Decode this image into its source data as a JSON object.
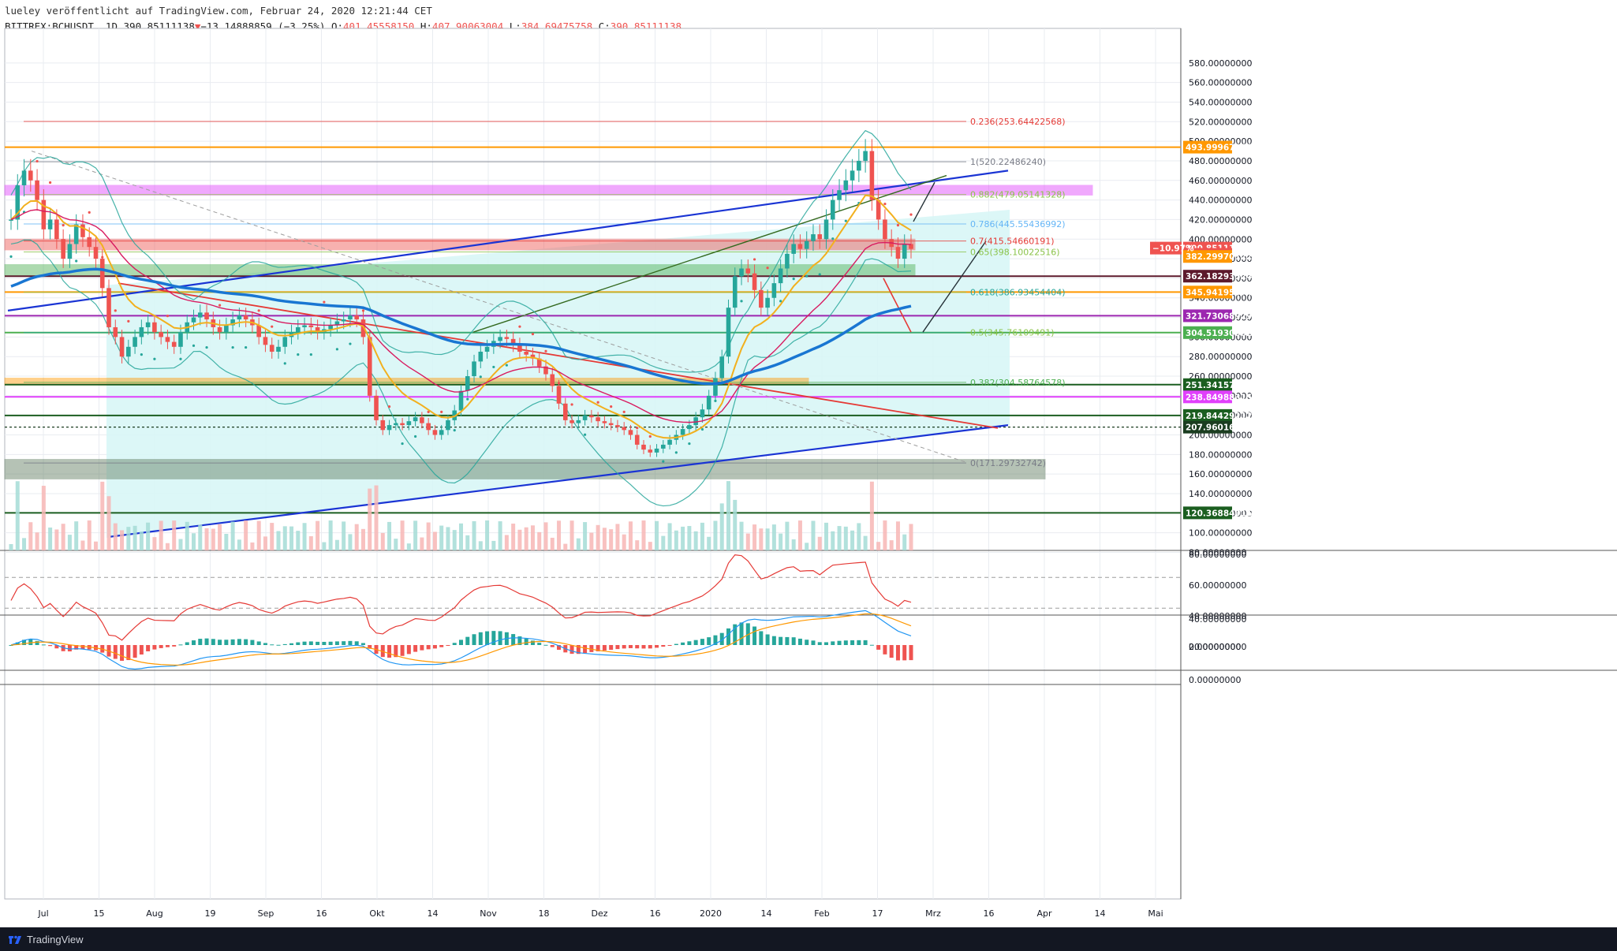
{
  "header": {
    "publisher_line": "lueley veröffentlicht auf TradingView.com, Februar 24, 2020 12:21:44 CET",
    "symbol": "BITTREX:BCHUSDT, 1D",
    "last": "390.85111138",
    "change": "−13.14888859 (−3.25%)",
    "o_label": "O:",
    "o_value": "401.45558150",
    "h_label": "H:",
    "h_value": "407.90063004",
    "l_label": "L:",
    "l_value": "384.69475758",
    "c_label": "C:",
    "c_value": "390.85111138"
  },
  "brand": {
    "name": "TradingView",
    "logo_icon": "tradingview-logo-icon"
  },
  "colors": {
    "up": "#26a69a",
    "down": "#ef5350",
    "grid": "#e9ecf1",
    "channel_fill": "#d8f6f6",
    "trendline": "#1a34d4",
    "rsi_line": "#e53935",
    "macd": "#2196f3",
    "signal": "#ff9800"
  },
  "price_axis": {
    "ticks": [
      "580.00000000",
      "560.00000000",
      "540.00000000",
      "520.00000000",
      "500.00000000",
      "480.00000000",
      "460.00000000",
      "440.00000000",
      "420.00000000",
      "400.00000000",
      "380.00000000",
      "360.00000000",
      "340.00000000",
      "320.00000000",
      "300.00000000",
      "280.00000000",
      "260.00000000",
      "240.00000000",
      "220.00000000",
      "200.00000000",
      "180.00000000",
      "160.00000000",
      "140.00000000",
      "120.00000000",
      "100.00000000",
      "80.00000000"
    ],
    "level_tags": [
      {
        "text": "493.99967175",
        "color": "#ff9800"
      },
      {
        "text": "390.85111138",
        "color": "#ef5350"
      },
      {
        "text": "12:38:18",
        "color": "#ef5350"
      },
      {
        "text": "382.29970122",
        "color": "#ff9800"
      },
      {
        "text": "362.18293524",
        "color": "#5d1a2c"
      },
      {
        "text": "345.94195974",
        "color": "#ff9800"
      },
      {
        "text": "321.73068929",
        "color": "#9c27b0"
      },
      {
        "text": "304.51930882",
        "color": "#4caf50"
      },
      {
        "text": "251.34157013",
        "color": "#1b5e20"
      },
      {
        "text": "238.84988315",
        "color": "#e040fb"
      },
      {
        "text": "219.84429212",
        "color": "#1b5e20"
      },
      {
        "text": "207.96016103",
        "color": "#1b3d20"
      },
      {
        "text": "120.36884016",
        "color": "#1b5e20"
      }
    ],
    "change_tag": "−10.97%"
  },
  "fib_levels": [
    {
      "text": "1(520.22486240)",
      "color": "#787b86"
    },
    {
      "text": "0.882(479.05141328)",
      "color": "#8bc34a"
    },
    {
      "text": "0.786(445.55436992)",
      "color": "#64b5f6"
    },
    {
      "text": "0.7(415.54660191)",
      "color": "#e53935"
    },
    {
      "text": "0.65(398.10022516)",
      "color": "#8bc34a"
    },
    {
      "text": "0.618(386.93454404)",
      "color": "#26a69a"
    },
    {
      "text": "0.5(345.76109491)",
      "color": "#8bc34a"
    },
    {
      "text": "0.382(304.58764578)",
      "color": "#4caf50"
    },
    {
      "text": "0.236(253.64422568)",
      "color": "#e53935"
    },
    {
      "text": "0(171.29732742)",
      "color": "#787b86"
    }
  ],
  "rsi_axis": [
    "80.00000000",
    "60.00000000",
    "40.00000000",
    "20.00000000"
  ],
  "macd_axis": [
    "40.00000000",
    "0.00000000",
    "0.00000000"
  ],
  "time_axis": [
    "Jul",
    "15",
    "Aug",
    "19",
    "Sep",
    "16",
    "Okt",
    "14",
    "Nov",
    "18",
    "Dez",
    "16",
    "2020",
    "14",
    "Feb",
    "17",
    "Mrz",
    "16",
    "Apr",
    "14",
    "Mai"
  ],
  "chart_data": {
    "type": "candlestick",
    "symbol": "BITTREX:BCHUSDT",
    "interval": "1D",
    "x_range": [
      "Jun 2019",
      "May 2020"
    ],
    "ylim": [
      70,
      600
    ],
    "last_ohlc": {
      "open": 401.4556,
      "high": 407.9006,
      "low": 384.6948,
      "close": 390.8511
    },
    "closes_approx": [
      420,
      455,
      470,
      460,
      440,
      410,
      420,
      400,
      380,
      395,
      415,
      402,
      392,
      380,
      350,
      310,
      300,
      280,
      290,
      300,
      310,
      315,
      305,
      300,
      295,
      290,
      305,
      315,
      320,
      325,
      318,
      310,
      305,
      312,
      318,
      322,
      318,
      312,
      300,
      292,
      285,
      290,
      300,
      305,
      310,
      312,
      310,
      305,
      308,
      312,
      316,
      318,
      322,
      318,
      300,
      240,
      215,
      205,
      210,
      212,
      210,
      214,
      218,
      212,
      205,
      200,
      205,
      215,
      225,
      245,
      260,
      275,
      285,
      290,
      296,
      300,
      298,
      292,
      285,
      282,
      278,
      270,
      262,
      250,
      232,
      215,
      212,
      215,
      220,
      218,
      214,
      212,
      210,
      208,
      205,
      200,
      190,
      185,
      182,
      186,
      190,
      195,
      200,
      206,
      210,
      218,
      226,
      240,
      258,
      280,
      330,
      362,
      370,
      365,
      348,
      330,
      340,
      355,
      370,
      385,
      395,
      390,
      398,
      405,
      400,
      420,
      440,
      450,
      460,
      470,
      480,
      490,
      440,
      420,
      400,
      392,
      380,
      395,
      390
    ],
    "fibonacci": {
      "0": 171.29732742,
      "0.236": 253.64422568,
      "0.382": 304.58764578,
      "0.5": 345.76109491,
      "0.618": 386.93454404,
      "0.65": 398.10022516,
      "0.7": 415.54660191,
      "0.786": 445.55436992,
      "0.882": 479.05141328,
      "1": 520.2248624
    },
    "horizontal_levels": [
      493.99967175,
      362.18293524,
      345.94195974,
      321.73068929,
      304.51930882,
      251.34157013,
      238.84988315,
      219.84429212,
      207.96016103,
      120.36884016
    ],
    "zones": [
      {
        "from": 445,
        "to": 455,
        "color": "#e040fb"
      },
      {
        "from": 389,
        "to": 400,
        "color": "#ef5350"
      },
      {
        "from": 363,
        "to": 374,
        "color": "#4caf50"
      },
      {
        "from": 251,
        "to": 258,
        "color": "#ff9800"
      },
      {
        "from": 155,
        "to": 175,
        "color": "#5d7a5d"
      }
    ],
    "indicators": [
      "Bollinger Bands",
      "EMA",
      "SMA 200",
      "Parabolic SAR",
      "Volume",
      "RSI",
      "MACD"
    ]
  }
}
